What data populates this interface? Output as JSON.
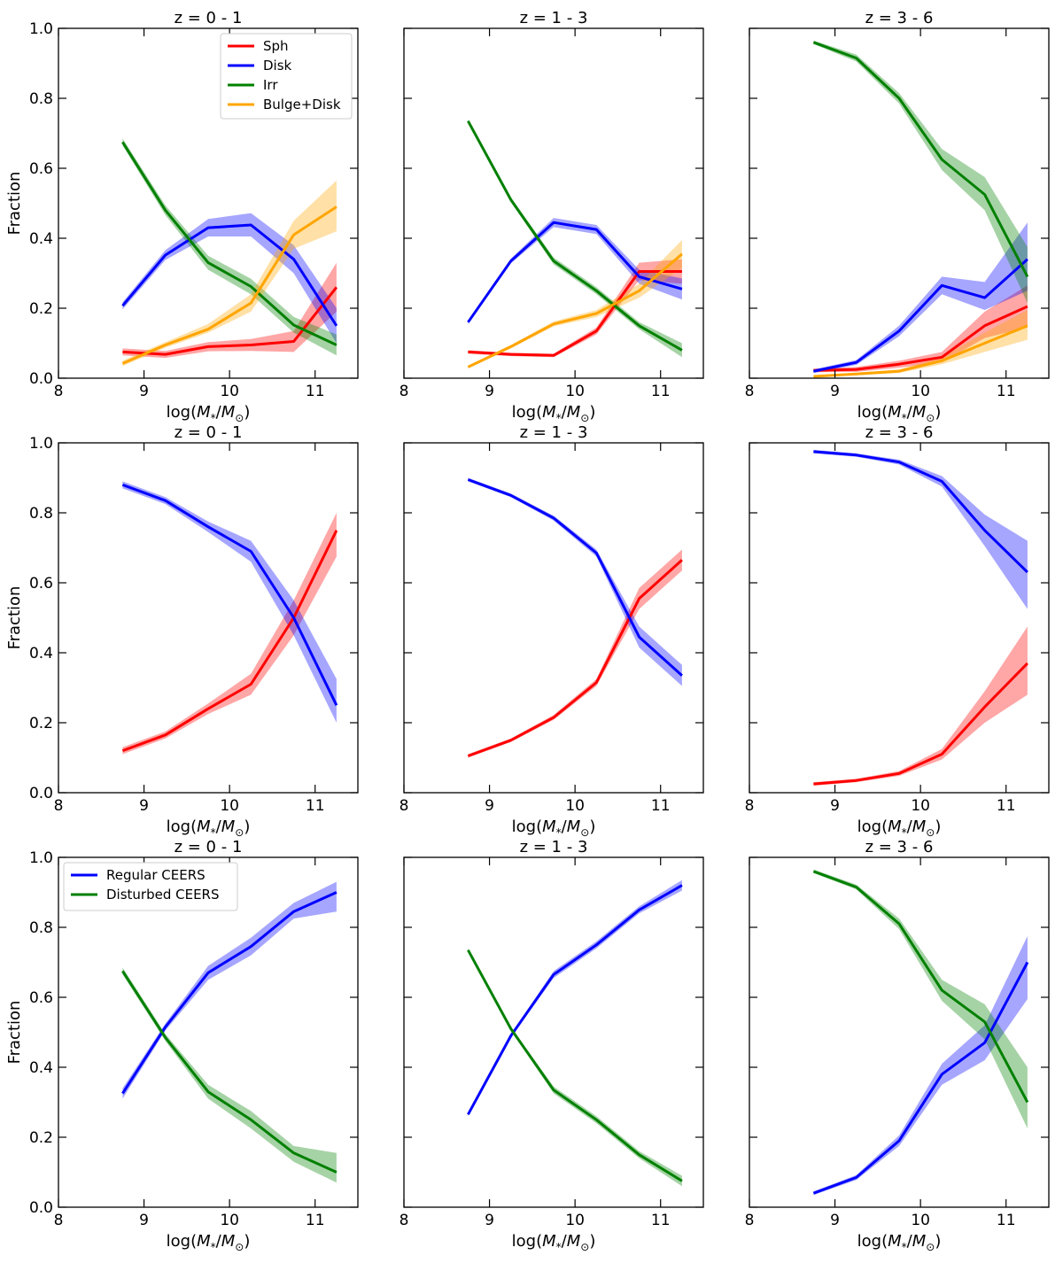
{
  "figure": {
    "ylabel": "Fraction",
    "xlabel": "log(M*/M⊙)"
  },
  "colors": {
    "Sph": "#ff0000",
    "Disk": "#0000ff",
    "Irr": "#008000",
    "Bulge+Disk": "#ffa500",
    "Regular CEERS": "#0000ff",
    "Disturbed CEERS": "#008000"
  },
  "chart_data": [
    {
      "type": "line",
      "title": "z = 0 - 1",
      "xlabel": "log(M*/M⊙)",
      "ylabel": "Fraction",
      "xlim": [
        8,
        11.5
      ],
      "ylim": [
        0,
        1
      ],
      "xticks": [
        8,
        9,
        10,
        11
      ],
      "yticks": [
        0.0,
        0.2,
        0.4,
        0.6,
        0.8,
        1.0
      ],
      "legend": "top-center",
      "x": [
        8.75,
        9.25,
        9.75,
        10.25,
        10.75,
        11.25
      ],
      "series": [
        {
          "name": "Sph",
          "values": [
            0.075,
            0.068,
            0.09,
            0.095,
            0.105,
            0.26
          ],
          "lower": [
            0.065,
            0.058,
            0.077,
            0.078,
            0.075,
            0.19
          ],
          "upper": [
            0.085,
            0.078,
            0.103,
            0.112,
            0.135,
            0.33
          ]
        },
        {
          "name": "Disk",
          "values": [
            0.207,
            0.352,
            0.43,
            0.438,
            0.34,
            0.15
          ],
          "lower": [
            0.197,
            0.338,
            0.405,
            0.405,
            0.3,
            0.1
          ],
          "upper": [
            0.217,
            0.366,
            0.455,
            0.472,
            0.38,
            0.2
          ]
        },
        {
          "name": "Irr",
          "values": [
            0.675,
            0.48,
            0.33,
            0.262,
            0.152,
            0.095
          ],
          "lower": [
            0.665,
            0.466,
            0.31,
            0.24,
            0.13,
            0.065
          ],
          "upper": [
            0.685,
            0.494,
            0.35,
            0.284,
            0.175,
            0.125
          ]
        },
        {
          "name": "Bulge+Disk",
          "values": [
            0.042,
            0.095,
            0.14,
            0.215,
            0.41,
            0.49
          ],
          "lower": [
            0.035,
            0.087,
            0.13,
            0.19,
            0.37,
            0.42
          ],
          "upper": [
            0.05,
            0.103,
            0.155,
            0.24,
            0.45,
            0.565
          ]
        }
      ]
    },
    {
      "type": "line",
      "title": "z = 1 - 3",
      "xlabel": "log(M*/M⊙)",
      "ylabel": "",
      "xlim": [
        8,
        11.5
      ],
      "ylim": [
        0,
        1
      ],
      "xticks": [
        8,
        9,
        10,
        11
      ],
      "yticks": [
        0.0,
        0.2,
        0.4,
        0.6,
        0.8,
        1.0
      ],
      "x": [
        8.75,
        9.25,
        9.75,
        10.25,
        10.75,
        11.25
      ],
      "series": [
        {
          "name": "Sph",
          "values": [
            0.075,
            0.068,
            0.065,
            0.135,
            0.305,
            0.305
          ],
          "lower": [
            0.07,
            0.063,
            0.06,
            0.125,
            0.28,
            0.27
          ],
          "upper": [
            0.08,
            0.073,
            0.07,
            0.145,
            0.33,
            0.34
          ]
        },
        {
          "name": "Disk",
          "values": [
            0.16,
            0.335,
            0.445,
            0.425,
            0.29,
            0.255
          ],
          "lower": [
            0.155,
            0.328,
            0.432,
            0.412,
            0.27,
            0.225
          ],
          "upper": [
            0.165,
            0.342,
            0.458,
            0.438,
            0.31,
            0.285
          ]
        },
        {
          "name": "Irr",
          "values": [
            0.735,
            0.51,
            0.335,
            0.25,
            0.15,
            0.08
          ],
          "lower": [
            0.73,
            0.503,
            0.325,
            0.24,
            0.14,
            0.06
          ],
          "upper": [
            0.74,
            0.517,
            0.345,
            0.26,
            0.16,
            0.1
          ]
        },
        {
          "name": "Bulge+Disk",
          "values": [
            0.032,
            0.09,
            0.155,
            0.185,
            0.25,
            0.355
          ],
          "lower": [
            0.028,
            0.085,
            0.148,
            0.175,
            0.23,
            0.315
          ],
          "upper": [
            0.036,
            0.095,
            0.162,
            0.195,
            0.27,
            0.395
          ]
        }
      ]
    },
    {
      "type": "line",
      "title": "z = 3 - 6",
      "xlabel": "log(M*/M⊙)",
      "ylabel": "",
      "xlim": [
        8,
        11.5
      ],
      "ylim": [
        0,
        1
      ],
      "xticks": [
        8,
        9,
        10,
        11
      ],
      "yticks": [
        0.0,
        0.2,
        0.4,
        0.6,
        0.8,
        1.0
      ],
      "x": [
        8.75,
        9.25,
        9.75,
        10.25,
        10.75,
        11.25
      ],
      "series": [
        {
          "name": "Sph",
          "values": [
            0.022,
            0.025,
            0.04,
            0.06,
            0.15,
            0.205
          ],
          "lower": [
            0.017,
            0.018,
            0.03,
            0.045,
            0.115,
            0.145
          ],
          "upper": [
            0.027,
            0.032,
            0.05,
            0.075,
            0.19,
            0.265
          ]
        },
        {
          "name": "Disk",
          "values": [
            0.02,
            0.045,
            0.135,
            0.265,
            0.23,
            0.34
          ],
          "lower": [
            0.015,
            0.038,
            0.12,
            0.24,
            0.195,
            0.25
          ],
          "upper": [
            0.025,
            0.052,
            0.15,
            0.29,
            0.275,
            0.445
          ]
        },
        {
          "name": "Irr",
          "values": [
            0.96,
            0.915,
            0.8,
            0.625,
            0.525,
            0.29
          ],
          "lower": [
            0.955,
            0.905,
            0.785,
            0.595,
            0.48,
            0.215
          ],
          "upper": [
            0.965,
            0.925,
            0.815,
            0.655,
            0.575,
            0.375
          ]
        },
        {
          "name": "Bulge+Disk",
          "values": [
            0.005,
            0.012,
            0.02,
            0.05,
            0.1,
            0.15
          ],
          "lower": [
            0.002,
            0.008,
            0.015,
            0.04,
            0.075,
            0.11
          ],
          "upper": [
            0.008,
            0.016,
            0.025,
            0.06,
            0.13,
            0.195
          ]
        }
      ]
    },
    {
      "type": "line",
      "title": "z = 0 - 1",
      "xlabel": "log(M*/M⊙)",
      "ylabel": "Fraction",
      "xlim": [
        8,
        11.5
      ],
      "ylim": [
        0,
        1
      ],
      "xticks": [
        8,
        9,
        10,
        11
      ],
      "yticks": [
        0.0,
        0.2,
        0.4,
        0.6,
        0.8,
        1.0
      ],
      "x": [
        8.75,
        9.25,
        9.75,
        10.25,
        10.75,
        11.25
      ],
      "series": [
        {
          "name": "Sph",
          "values": [
            0.12,
            0.165,
            0.24,
            0.31,
            0.5,
            0.75
          ],
          "lower": [
            0.11,
            0.155,
            0.225,
            0.28,
            0.45,
            0.675
          ],
          "upper": [
            0.13,
            0.175,
            0.255,
            0.34,
            0.55,
            0.8
          ]
        },
        {
          "name": "Disk",
          "values": [
            0.88,
            0.835,
            0.76,
            0.69,
            0.5,
            0.25
          ],
          "lower": [
            0.87,
            0.825,
            0.745,
            0.66,
            0.45,
            0.2
          ],
          "upper": [
            0.89,
            0.845,
            0.775,
            0.72,
            0.55,
            0.325
          ]
        }
      ]
    },
    {
      "type": "line",
      "title": "z = 1 - 3",
      "xlabel": "log(M*/M⊙)",
      "ylabel": "",
      "xlim": [
        8,
        11.5
      ],
      "ylim": [
        0,
        1
      ],
      "xticks": [
        8,
        9,
        10,
        11
      ],
      "yticks": [
        0.0,
        0.2,
        0.4,
        0.6,
        0.8,
        1.0
      ],
      "x": [
        8.75,
        9.25,
        9.75,
        10.25,
        10.75,
        11.25
      ],
      "series": [
        {
          "name": "Sph",
          "values": [
            0.105,
            0.15,
            0.215,
            0.315,
            0.555,
            0.665
          ],
          "lower": [
            0.1,
            0.145,
            0.208,
            0.305,
            0.525,
            0.635
          ],
          "upper": [
            0.11,
            0.155,
            0.222,
            0.325,
            0.585,
            0.695
          ]
        },
        {
          "name": "Disk",
          "values": [
            0.895,
            0.85,
            0.785,
            0.685,
            0.445,
            0.335
          ],
          "lower": [
            0.89,
            0.845,
            0.778,
            0.675,
            0.415,
            0.305
          ],
          "upper": [
            0.9,
            0.855,
            0.792,
            0.695,
            0.475,
            0.365
          ]
        }
      ]
    },
    {
      "type": "line",
      "title": "z = 3 - 6",
      "xlabel": "log(M*/M⊙)",
      "ylabel": "",
      "xlim": [
        8,
        11.5
      ],
      "ylim": [
        0,
        1
      ],
      "xticks": [
        8,
        9,
        10,
        11
      ],
      "yticks": [
        0.0,
        0.2,
        0.4,
        0.6,
        0.8,
        1.0
      ],
      "x": [
        8.75,
        9.25,
        9.75,
        10.25,
        10.75,
        11.25
      ],
      "series": [
        {
          "name": "Sph",
          "values": [
            0.025,
            0.035,
            0.055,
            0.11,
            0.245,
            0.37
          ],
          "lower": [
            0.02,
            0.03,
            0.048,
            0.095,
            0.2,
            0.28
          ],
          "upper": [
            0.03,
            0.04,
            0.062,
            0.125,
            0.29,
            0.475
          ]
        },
        {
          "name": "Disk",
          "values": [
            0.975,
            0.965,
            0.945,
            0.89,
            0.75,
            0.63
          ],
          "lower": [
            0.97,
            0.96,
            0.938,
            0.875,
            0.705,
            0.525
          ],
          "upper": [
            0.98,
            0.97,
            0.952,
            0.905,
            0.795,
            0.72
          ]
        }
      ]
    },
    {
      "type": "line",
      "title": "z = 0 - 1",
      "xlabel": "log(M*/M⊙)",
      "ylabel": "Fraction",
      "xlim": [
        8,
        11.5
      ],
      "ylim": [
        0,
        1
      ],
      "xticks": [
        8,
        9,
        10,
        11
      ],
      "yticks": [
        0.0,
        0.2,
        0.4,
        0.6,
        0.8,
        1.0
      ],
      "legend": "top-left",
      "x": [
        8.75,
        9.25,
        9.75,
        10.25,
        10.75,
        11.25
      ],
      "series": [
        {
          "name": "Regular CEERS",
          "values": [
            0.325,
            0.515,
            0.67,
            0.745,
            0.845,
            0.9
          ],
          "lower": [
            0.31,
            0.505,
            0.65,
            0.72,
            0.825,
            0.845
          ],
          "upper": [
            0.34,
            0.525,
            0.69,
            0.77,
            0.87,
            0.93
          ]
        },
        {
          "name": "Disturbed CEERS",
          "values": [
            0.675,
            0.485,
            0.33,
            0.25,
            0.155,
            0.1
          ],
          "lower": [
            0.665,
            0.475,
            0.31,
            0.225,
            0.13,
            0.07
          ],
          "upper": [
            0.685,
            0.495,
            0.35,
            0.275,
            0.175,
            0.155
          ]
        }
      ]
    },
    {
      "type": "line",
      "title": "z = 1 - 3",
      "xlabel": "log(M*/M⊙)",
      "ylabel": "",
      "xlim": [
        8,
        11.5
      ],
      "ylim": [
        0,
        1
      ],
      "xticks": [
        8,
        9,
        10,
        11
      ],
      "yticks": [
        0.0,
        0.2,
        0.4,
        0.6,
        0.8,
        1.0
      ],
      "x": [
        8.75,
        9.25,
        9.75,
        10.25,
        10.75,
        11.25
      ],
      "series": [
        {
          "name": "Regular CEERS",
          "values": [
            0.265,
            0.49,
            0.665,
            0.75,
            0.85,
            0.92
          ],
          "lower": [
            0.26,
            0.485,
            0.655,
            0.74,
            0.84,
            0.905
          ],
          "upper": [
            0.27,
            0.495,
            0.675,
            0.76,
            0.86,
            0.935
          ]
        },
        {
          "name": "Disturbed CEERS",
          "values": [
            0.735,
            0.51,
            0.335,
            0.25,
            0.15,
            0.075
          ],
          "lower": [
            0.73,
            0.505,
            0.325,
            0.24,
            0.14,
            0.06
          ],
          "upper": [
            0.74,
            0.515,
            0.345,
            0.26,
            0.16,
            0.09
          ]
        }
      ]
    },
    {
      "type": "line",
      "title": "z = 3 - 6",
      "xlabel": "log(M*/M⊙)",
      "ylabel": "",
      "xlim": [
        8,
        11.5
      ],
      "ylim": [
        0,
        1
      ],
      "xticks": [
        8,
        9,
        10,
        11
      ],
      "yticks": [
        0.0,
        0.2,
        0.4,
        0.6,
        0.8,
        1.0
      ],
      "x": [
        8.75,
        9.25,
        9.75,
        10.25,
        10.75,
        11.25
      ],
      "series": [
        {
          "name": "Regular CEERS",
          "values": [
            0.04,
            0.085,
            0.19,
            0.38,
            0.47,
            0.7
          ],
          "lower": [
            0.035,
            0.078,
            0.175,
            0.35,
            0.42,
            0.595
          ],
          "upper": [
            0.045,
            0.092,
            0.205,
            0.41,
            0.52,
            0.775
          ]
        },
        {
          "name": "Disturbed CEERS",
          "values": [
            0.96,
            0.915,
            0.81,
            0.62,
            0.53,
            0.3
          ],
          "lower": [
            0.955,
            0.908,
            0.795,
            0.59,
            0.48,
            0.225
          ],
          "upper": [
            0.965,
            0.922,
            0.825,
            0.65,
            0.58,
            0.4
          ]
        }
      ]
    }
  ]
}
